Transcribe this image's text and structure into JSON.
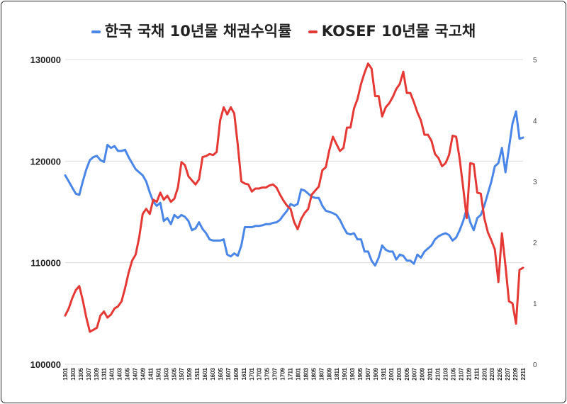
{
  "chart_data": {
    "type": "line",
    "legend_position": "top",
    "grid": true,
    "series": [
      {
        "name": "한국 국채 10년물 채권수익률",
        "axis": "right",
        "color": "#4a86e8",
        "values": [
          3.1,
          3.0,
          2.9,
          2.8,
          2.78,
          3.0,
          3.2,
          3.35,
          3.4,
          3.42,
          3.35,
          3.32,
          3.6,
          3.55,
          3.58,
          3.5,
          3.5,
          3.52,
          3.4,
          3.3,
          3.2,
          3.15,
          3.1,
          3.0,
          2.82,
          2.67,
          2.6,
          2.65,
          2.35,
          2.4,
          2.3,
          2.45,
          2.4,
          2.45,
          2.42,
          2.35,
          2.2,
          2.23,
          2.33,
          2.22,
          2.15,
          2.05,
          2.03,
          2.03,
          2.03,
          2.05,
          1.8,
          1.77,
          1.82,
          1.78,
          1.95,
          2.25,
          2.25,
          2.25,
          2.27,
          2.27,
          2.28,
          2.3,
          2.3,
          2.32,
          2.33,
          2.37,
          2.45,
          2.52,
          2.63,
          2.6,
          2.63,
          2.87,
          2.85,
          2.8,
          2.75,
          2.73,
          2.73,
          2.6,
          2.52,
          2.5,
          2.48,
          2.45,
          2.37,
          2.25,
          2.15,
          2.13,
          2.15,
          2.05,
          2.05,
          1.85,
          1.85,
          1.7,
          1.62,
          1.75,
          1.95,
          1.88,
          1.85,
          1.85,
          1.72,
          1.8,
          1.78,
          1.7,
          1.7,
          1.65,
          1.8,
          1.75,
          1.85,
          1.9,
          1.95,
          2.05,
          2.1,
          2.13,
          2.15,
          2.12,
          2.03,
          2.08,
          2.2,
          2.35,
          2.55,
          2.33,
          2.2,
          2.4,
          2.45,
          2.6,
          2.8,
          3.0,
          3.25,
          3.3,
          3.55,
          3.15,
          3.55,
          3.95,
          4.15,
          3.7,
          3.72
        ]
      },
      {
        "name": "KOSEF 10년물 국고채",
        "axis": "left",
        "color": "#e53935",
        "values": [
          104800,
          105500,
          106500,
          107300,
          107700,
          106300,
          104600,
          103200,
          103400,
          103600,
          104800,
          105200,
          104600,
          104900,
          105500,
          105700,
          106200,
          107500,
          109000,
          110200,
          110800,
          112500,
          114800,
          115300,
          114800,
          116200,
          116000,
          116900,
          116200,
          116600,
          116000,
          116300,
          117400,
          119900,
          119600,
          118500,
          118100,
          117700,
          118200,
          120400,
          120500,
          120700,
          120600,
          120900,
          124000,
          125300,
          124600,
          125300,
          124700,
          121600,
          118000,
          117800,
          117700,
          117000,
          117300,
          117300,
          117400,
          117400,
          117600,
          117700,
          117400,
          116700,
          116100,
          115600,
          115300,
          114000,
          113300,
          114300,
          114900,
          115300,
          116700,
          117100,
          117500,
          119100,
          119400,
          121100,
          122400,
          121700,
          121000,
          121300,
          123300,
          123300,
          125200,
          126100,
          127600,
          128700,
          129600,
          129100,
          126400,
          126400,
          124400,
          125300,
          125700,
          126300,
          127100,
          127600,
          128800,
          126700,
          126700,
          125800,
          124800,
          124000,
          122600,
          122600,
          122000,
          120700,
          120300,
          119500,
          119800,
          120600,
          122500,
          122400,
          120200,
          117400,
          114400,
          119800,
          119700,
          116900,
          116800,
          114400,
          113000,
          112200,
          111300,
          108100,
          112900,
          109700,
          106200,
          106000,
          104000,
          109300,
          109500
        ]
      }
    ],
    "x_ticks": [
      "1301",
      "1303",
      "1305",
      "1307",
      "1309",
      "1311",
      "1401",
      "1403",
      "1405",
      "1407",
      "1409",
      "1411",
      "1501",
      "1503",
      "1505",
      "1507",
      "1509",
      "1511",
      "1601",
      "1603",
      "1605",
      "1607",
      "1609",
      "1611",
      "1701",
      "1703",
      "1705",
      "1707",
      "1709",
      "1711",
      "1801",
      "1803",
      "1805",
      "1807",
      "1809",
      "1811",
      "1901",
      "1903",
      "1905",
      "1907",
      "1909",
      "1911",
      "2001",
      "2003",
      "2005",
      "2007",
      "2009",
      "2011",
      "2101",
      "2103",
      "2105",
      "2107",
      "2109",
      "2111",
      "2201",
      "2203",
      "2205",
      "2207",
      "2209",
      "2211"
    ],
    "y_left": {
      "min": 100000,
      "max": 130000,
      "ticks": [
        "100000",
        "110000",
        "120000",
        "130000"
      ]
    },
    "y_right": {
      "min": 0,
      "max": 5,
      "ticks": [
        "0",
        "1",
        "2",
        "3",
        "4",
        "5"
      ]
    }
  }
}
